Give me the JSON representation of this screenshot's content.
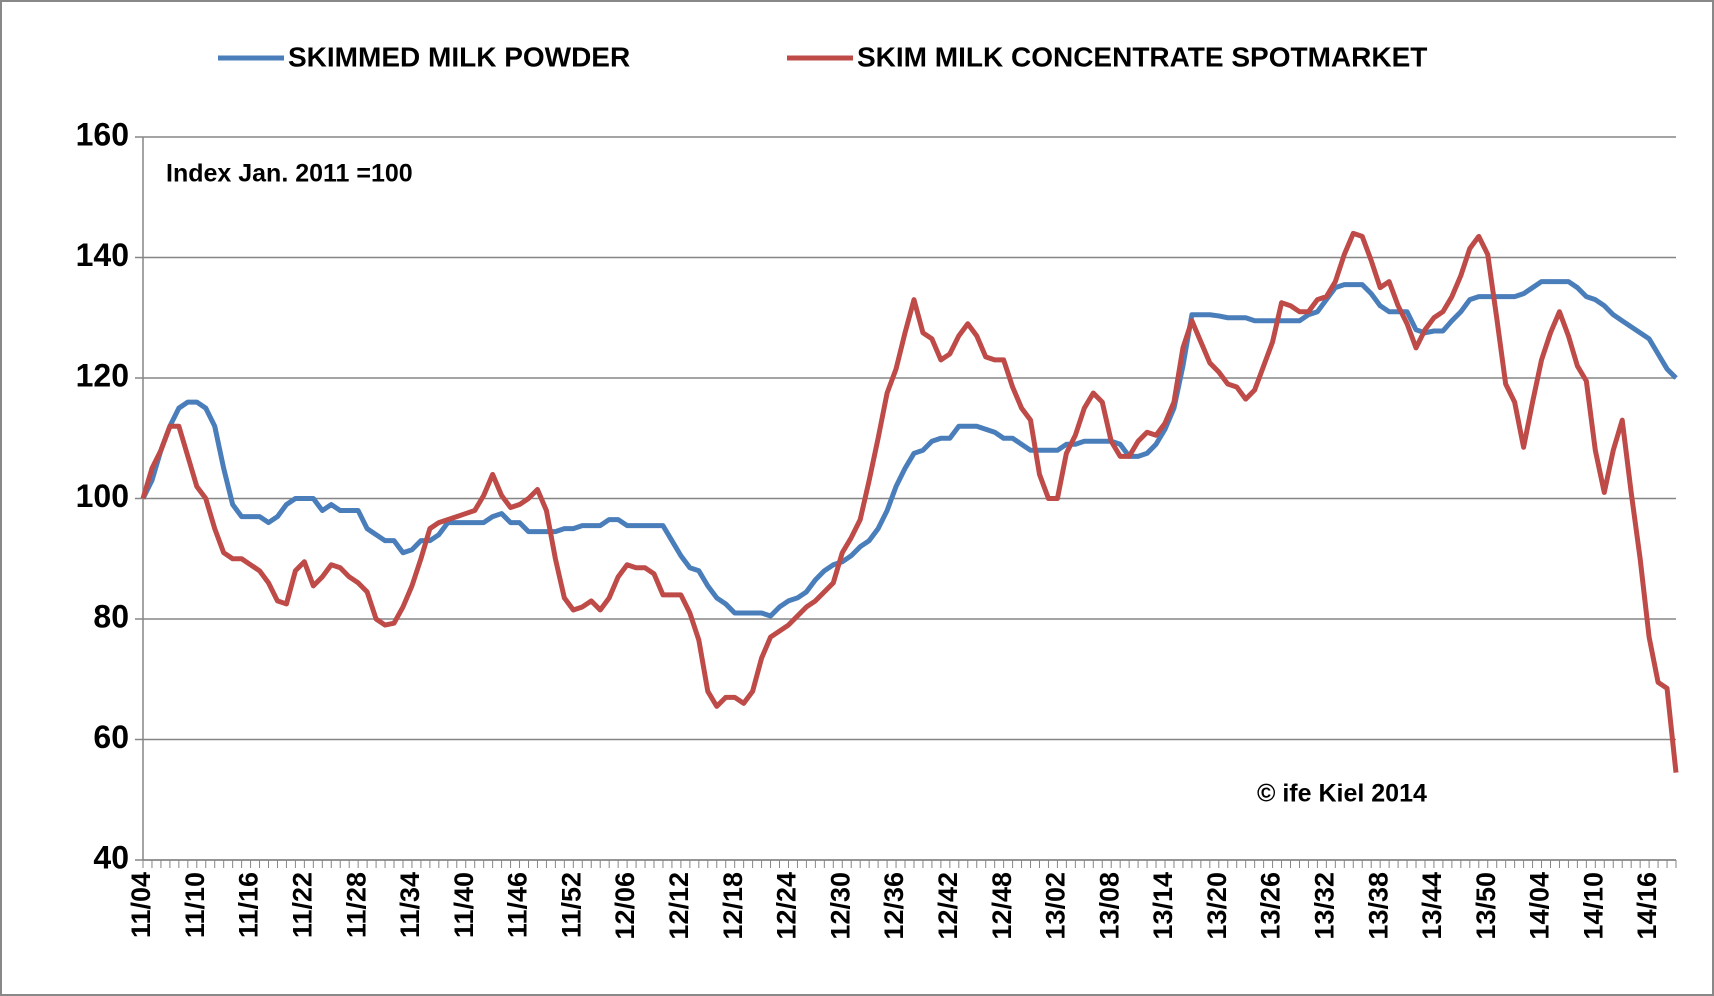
{
  "chart_data": {
    "type": "line",
    "annotations": [
      "Index Jan. 2011 =100",
      "© ife Kiel 2014"
    ],
    "categories": [
      "11/04",
      null,
      null,
      null,
      null,
      null,
      "11/10",
      null,
      null,
      null,
      null,
      null,
      "11/16",
      null,
      null,
      null,
      null,
      null,
      "11/22",
      null,
      null,
      null,
      null,
      null,
      "11/28",
      null,
      null,
      null,
      null,
      null,
      "11/34",
      null,
      null,
      null,
      null,
      null,
      "11/40",
      null,
      null,
      null,
      null,
      null,
      "11/46",
      null,
      null,
      null,
      null,
      null,
      "11/52",
      null,
      null,
      null,
      null,
      null,
      "12/06",
      null,
      null,
      null,
      null,
      null,
      "12/12",
      null,
      null,
      null,
      null,
      null,
      "12/18",
      null,
      null,
      null,
      null,
      null,
      "12/24",
      null,
      null,
      null,
      null,
      null,
      "12/30",
      null,
      null,
      null,
      null,
      null,
      "12/36",
      null,
      null,
      null,
      null,
      null,
      "12/42",
      null,
      null,
      null,
      null,
      null,
      "12/48",
      null,
      null,
      null,
      null,
      null,
      "13/02",
      null,
      null,
      null,
      null,
      null,
      "13/08",
      null,
      null,
      null,
      null,
      null,
      "13/14",
      null,
      null,
      null,
      null,
      null,
      "13/20",
      null,
      null,
      null,
      null,
      null,
      "13/26",
      null,
      null,
      null,
      null,
      null,
      "13/32",
      null,
      null,
      null,
      null,
      null,
      "13/38",
      null,
      null,
      null,
      null,
      null,
      "13/44",
      null,
      null,
      null,
      null,
      null,
      "13/50",
      null,
      null,
      null,
      null,
      null,
      "14/04",
      null,
      null,
      null,
      null,
      null,
      "14/10",
      null,
      null,
      null,
      null,
      null,
      "14/16",
      null,
      null,
      null
    ],
    "series": [
      {
        "name": "SKIMMED MILK POWDER",
        "color": "#4a7ebb",
        "values": [
          100,
          103,
          108,
          112,
          115,
          116,
          116,
          115,
          112,
          105,
          99,
          97,
          97,
          97,
          96,
          97,
          99,
          100,
          100,
          100,
          98,
          99,
          98,
          98,
          98,
          95,
          94,
          93,
          93,
          91,
          91.5,
          93,
          93,
          94,
          96,
          96,
          96,
          96,
          96,
          97,
          97.5,
          96,
          96,
          94.5,
          94.5,
          94.5,
          94.5,
          95,
          95,
          95.5,
          95.5,
          95.5,
          96.5,
          96.5,
          95.5,
          95.5,
          95.5,
          95.5,
          95.5,
          93,
          90.5,
          88.5,
          88,
          85.5,
          83.5,
          82.5,
          81,
          81,
          81,
          81,
          80.5,
          82,
          83,
          83.5,
          84.5,
          86.5,
          88,
          89,
          89.5,
          90.5,
          92,
          93,
          95,
          98,
          102,
          105,
          107.5,
          108,
          109.5,
          110,
          110,
          112,
          112,
          112,
          111.5,
          111,
          110,
          110,
          109,
          108,
          108,
          108,
          108,
          109,
          109,
          109.5,
          109.5,
          109.5,
          109.5,
          109,
          107,
          107,
          107.5,
          109,
          111.5,
          115,
          122,
          130.5,
          130.5,
          130.5,
          130.3,
          130,
          130,
          130,
          129.5,
          129.5,
          129.5,
          129.5,
          129.5,
          129.5,
          130.5,
          131,
          133,
          135,
          135.5,
          135.5,
          135.5,
          134,
          132,
          131,
          131,
          131,
          128,
          127.5,
          127.8,
          127.8,
          129.5,
          131,
          133,
          133.5,
          133.5,
          133.5,
          133.5,
          133.5,
          134,
          135,
          136,
          136,
          136,
          136,
          135,
          133.5,
          133,
          132,
          130.5,
          129.5,
          128.5,
          127.5,
          126.5,
          124,
          121.5,
          120
        ]
      },
      {
        "name": "SKIM MILK CONCENTRATE SPOTMARKET",
        "color": "#be4b48",
        "values": [
          100,
          105,
          108,
          112,
          112,
          107,
          102,
          100,
          95,
          91,
          90,
          90,
          89,
          88,
          86,
          83,
          82.5,
          88,
          89.5,
          85.5,
          87,
          89,
          88.5,
          87,
          86,
          84.5,
          80,
          79,
          79.3,
          82,
          85.5,
          90,
          95,
          96,
          96.5,
          97,
          97.5,
          98,
          100.5,
          104,
          100.5,
          98.5,
          99,
          100,
          101.5,
          98,
          90,
          83.5,
          81.5,
          82,
          83,
          81.5,
          83.5,
          87,
          89,
          88.5,
          88.5,
          87.5,
          84,
          84,
          84,
          81,
          76.5,
          68,
          65.5,
          67,
          67,
          66,
          68,
          73.5,
          77,
          78,
          79,
          80.5,
          82,
          83,
          84.5,
          86,
          91,
          93.5,
          96.5,
          103,
          110,
          117.5,
          121.5,
          127.5,
          133,
          127.5,
          126.5,
          123,
          124,
          127,
          129,
          127,
          123.5,
          123,
          123,
          118.5,
          115,
          113,
          104,
          100,
          100,
          107.5,
          110.5,
          115,
          117.5,
          116,
          109.5,
          107,
          107,
          109.5,
          111,
          110.5,
          112.5,
          116,
          125,
          129.5,
          126,
          122.5,
          121,
          119,
          118.5,
          116.5,
          118,
          122,
          126,
          132.5,
          132,
          131,
          131,
          133,
          133.5,
          136,
          140.5,
          144,
          143.5,
          139.5,
          135,
          136,
          132,
          129,
          125,
          128,
          130,
          131,
          133.5,
          137,
          141.5,
          143.5,
          140.5,
          130,
          119,
          116,
          108.5,
          116,
          123,
          127.5,
          131,
          127,
          122,
          119.5,
          108,
          101,
          108,
          113,
          101,
          90,
          77,
          69.5,
          68.5,
          54.5
        ]
      }
    ],
    "ylim": [
      40,
      160
    ],
    "yticks": [
      40,
      60,
      80,
      100,
      120,
      140,
      160
    ],
    "grid": true
  }
}
